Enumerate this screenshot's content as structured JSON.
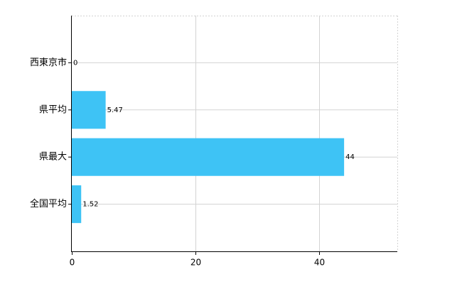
{
  "chart_data": {
    "type": "bar",
    "orientation": "horizontal",
    "categories": [
      "西東京市",
      "県平均",
      "県最大",
      "全国平均"
    ],
    "values": [
      0,
      5.47,
      44,
      1.52
    ],
    "color": "#3ec3f5",
    "xlim": [
      0,
      52.6
    ],
    "xticks": [
      0,
      20,
      40
    ],
    "grid": true
  }
}
